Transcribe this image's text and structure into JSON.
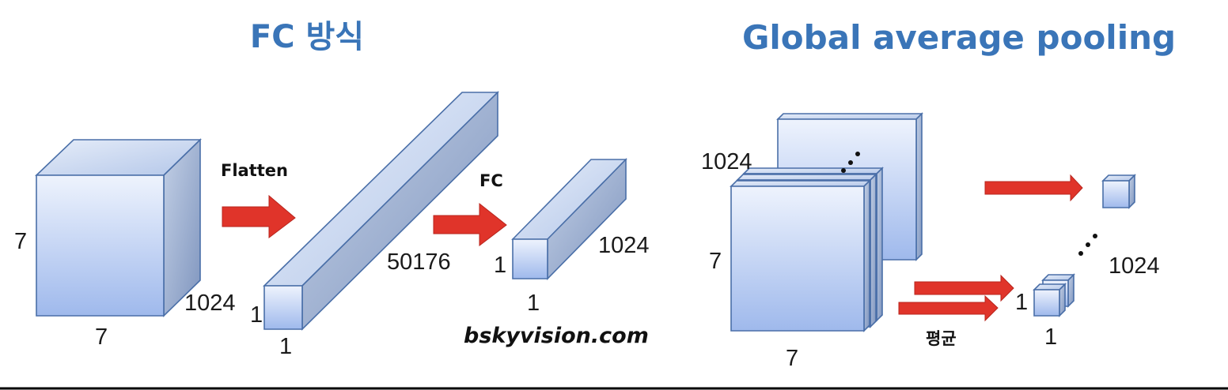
{
  "titles": {
    "left": "FC 방식",
    "right": "Global average pooling"
  },
  "fc_section": {
    "cube": {
      "height_label": "7",
      "width_label": "7",
      "depth_label": "1024"
    },
    "flatten_label": "Flatten",
    "flat_bar": {
      "h_label": "1",
      "w_label": "1",
      "length_label": "50176"
    },
    "fc_label": "FC",
    "fc_bar": {
      "h_label": "1",
      "w_label": "1",
      "length_label": "1024"
    },
    "watermark": "bskyvision.com"
  },
  "gap_section": {
    "stack": {
      "depth_label": "1024",
      "height_label": "7",
      "width_label": "7"
    },
    "avg_label": "평균",
    "out_column": {
      "length_label": "1024",
      "h_label": "1",
      "w_label": "1"
    }
  },
  "colors": {
    "title": "#3a75b8",
    "arrow": "#e0342a",
    "box_stroke": "#4a6fa8"
  }
}
